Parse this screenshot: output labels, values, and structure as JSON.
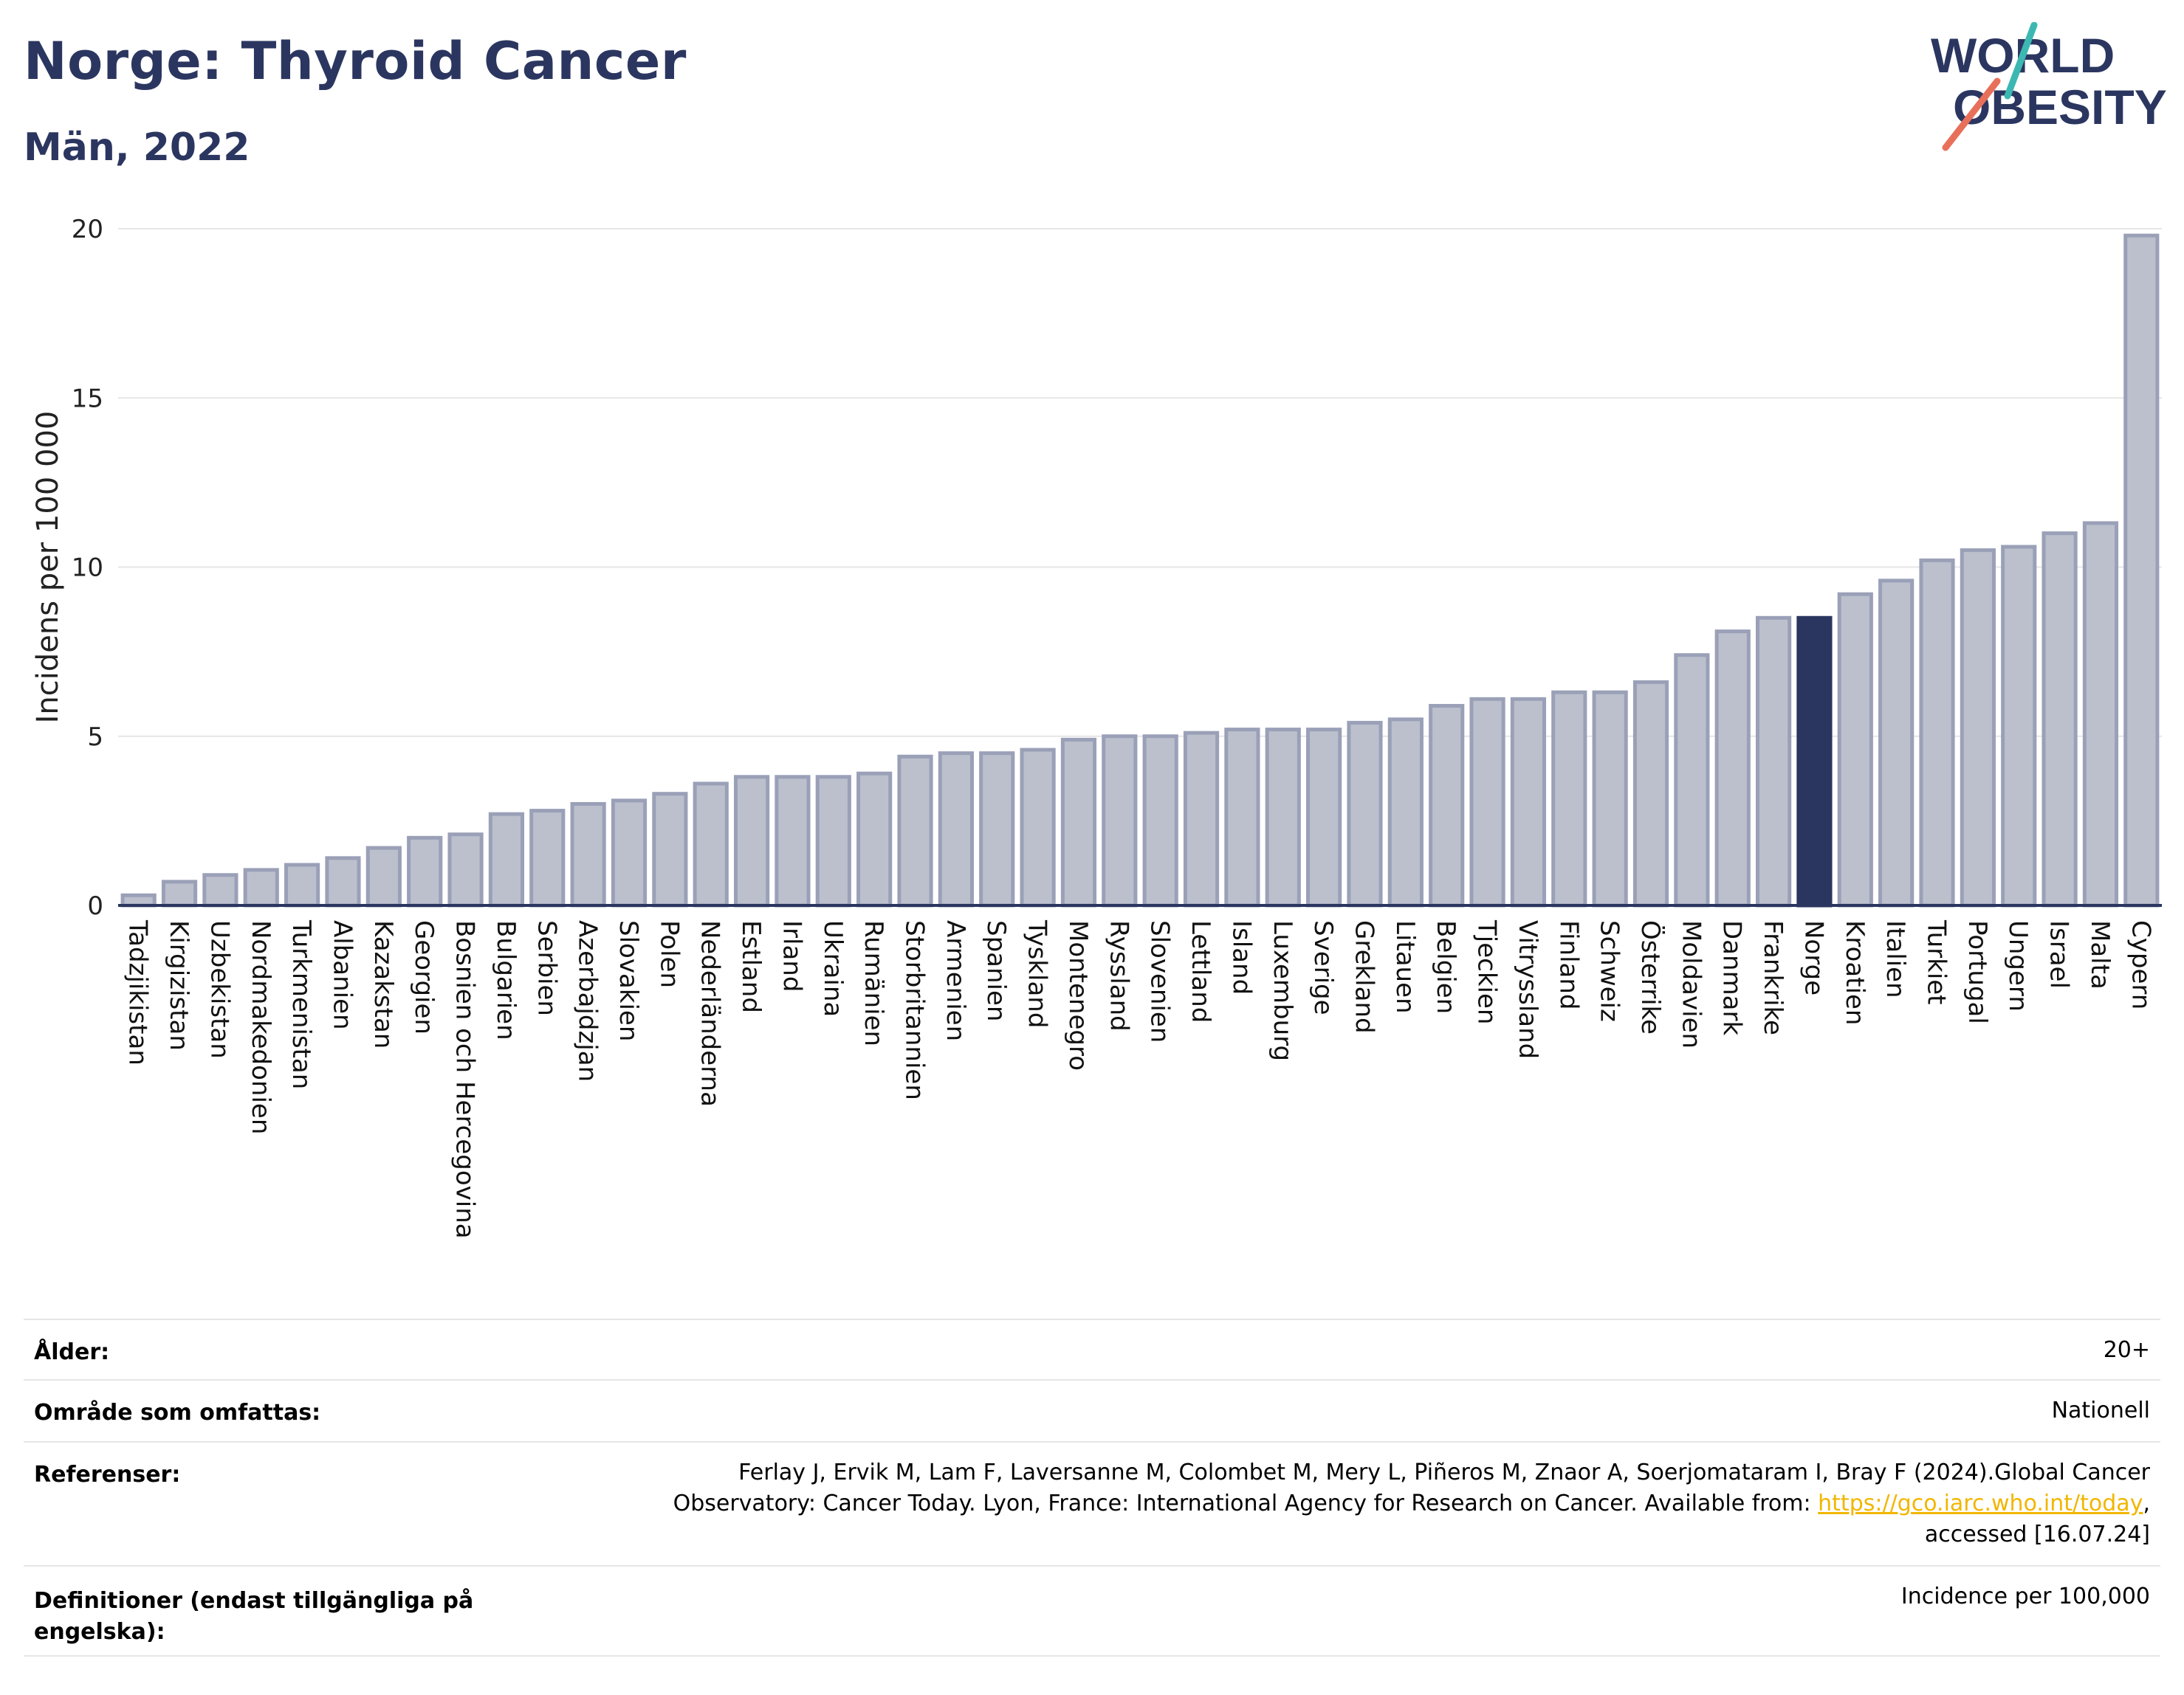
{
  "header": {
    "title": "Norge: Thyroid Cancer",
    "subtitle": "Män, 2022",
    "logo_text_line1": "WORLD",
    "logo_text_line2": "OBESITY"
  },
  "colors": {
    "bar": "#bcc0cd",
    "bar_stroke": "#9aa0b7",
    "highlight": "#2b3660",
    "title": "#2b3660",
    "grid": "#e6e6e6",
    "link": "#f2b600",
    "logo_teal": "#3cb8b2",
    "logo_red": "#e8705a"
  },
  "chart_data": {
    "type": "bar",
    "ylabel": "Incidens per 100 000",
    "ylim": [
      0,
      20
    ],
    "yticks": [
      0,
      5,
      10,
      15,
      20
    ],
    "highlight": "Norge",
    "categories": [
      "Tadzjikistan",
      "Kirgizistan",
      "Uzbekistan",
      "Nordmakedonien",
      "Turkmenistan",
      "Albanien",
      "Kazakstan",
      "Georgien",
      "Bosnien och Hercegovina",
      "Bulgarien",
      "Serbien",
      "Azerbajdzjan",
      "Slovakien",
      "Polen",
      "Nederländerna",
      "Estland",
      "Irland",
      "Ukraina",
      "Rumänien",
      "Storbritannien",
      "Armenien",
      "Spanien",
      "Tyskland",
      "Montenegro",
      "Ryssland",
      "Slovenien",
      "Lettland",
      "Island",
      "Luxemburg",
      "Sverige",
      "Grekland",
      "Litauen",
      "Belgien",
      "Tjeckien",
      "Vitryssland",
      "Finland",
      "Schweiz",
      "Österrike",
      "Moldavien",
      "Danmark",
      "Frankrike",
      "Norge",
      "Kroatien",
      "Italien",
      "Turkiet",
      "Portugal",
      "Ungern",
      "Israel",
      "Malta",
      "Cypern"
    ],
    "values": [
      0.3,
      0.7,
      0.9,
      1.05,
      1.2,
      1.4,
      1.7,
      2.0,
      2.1,
      2.7,
      2.8,
      3.0,
      3.1,
      3.3,
      3.6,
      3.8,
      3.8,
      3.8,
      3.9,
      4.4,
      4.5,
      4.5,
      4.6,
      4.9,
      5.0,
      5.0,
      5.1,
      5.2,
      5.2,
      5.2,
      5.4,
      5.5,
      5.9,
      6.1,
      6.1,
      6.3,
      6.3,
      6.6,
      7.4,
      8.1,
      8.5,
      8.5,
      9.2,
      9.6,
      10.2,
      10.5,
      10.6,
      11.0,
      11.3,
      19.8
    ]
  },
  "meta": {
    "age_label": "Ålder:",
    "age_value": "20+",
    "area_label": "Område som omfattas:",
    "area_value": "Nationell",
    "ref_label": "Referenser:",
    "ref_line1": "Ferlay J, Ervik M, Lam F, Laversanne M, Colombet M, Mery L, Piñeros M, Znaor A, Soerjomataram I, Bray F (2024).Global Cancer",
    "ref_line2_pre": "Observatory: Cancer Today. Lyon, France: International Agency for Research on Cancer. Available from: ",
    "ref_link": "https://gco.iarc.who.int/today",
    "ref_line2_post": ",",
    "ref_line3": "accessed [16.07.24]",
    "def_label_line1": "Definitioner (endast tillgängliga på",
    "def_label_line2": "engelska):",
    "def_value": "Incidence per 100,000"
  }
}
